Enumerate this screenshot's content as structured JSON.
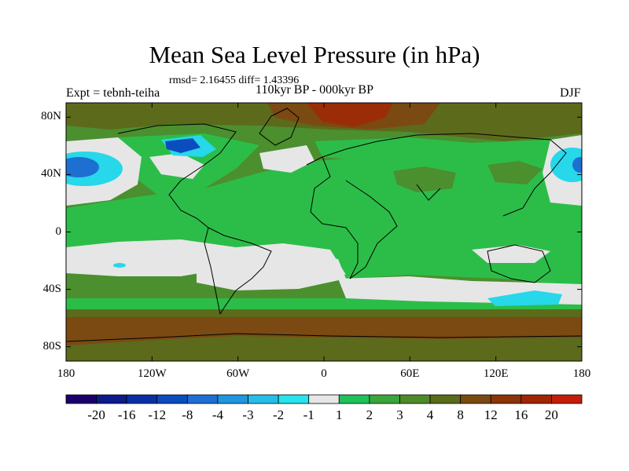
{
  "title": "Mean Sea Level Pressure (in hPa)",
  "stats_line": "rmsd= 2.16455 diff= 1.43396",
  "experiment": "Expt = tebnh-teiha",
  "period": "110kyr BP - 000kyr BP",
  "season": "DJF",
  "map": {
    "lat_ticks": [
      {
        "label": "80N",
        "lat": 80
      },
      {
        "label": "40N",
        "lat": 40
      },
      {
        "label": "0",
        "lat": 0
      },
      {
        "label": "40S",
        "lat": -40
      },
      {
        "label": "80S",
        "lat": -80
      }
    ],
    "lon_ticks": [
      {
        "label": "180",
        "lon": -180
      },
      {
        "label": "120W",
        "lon": -120
      },
      {
        "label": "60W",
        "lon": -60
      },
      {
        "label": "0",
        "lon": 0
      },
      {
        "label": "60E",
        "lon": 60
      },
      {
        "label": "120E",
        "lon": 120
      },
      {
        "label": "180",
        "lon": 180
      }
    ]
  },
  "colorbar": {
    "colors": [
      "#1a006b",
      "#0d1a8c",
      "#0a2fa5",
      "#0b4cbf",
      "#1e6fd2",
      "#1f96df",
      "#26bde8",
      "#27e3ec",
      "#e6e6e6",
      "#1fc25a",
      "#3aa53a",
      "#4f8a2a",
      "#5a6b1b",
      "#7a4a10",
      "#8c3308",
      "#a02505",
      "#c51c0c"
    ],
    "labels": [
      "-20",
      "-16",
      "-12",
      "-8",
      "-4",
      "-3",
      "-2",
      "-1",
      "1",
      "2",
      "3",
      "4",
      "8",
      "12",
      "16",
      "20"
    ]
  },
  "fill_colors": {
    "land_green": "#2cbd49",
    "mid_green": "#4b8f2e",
    "olive": "#5c6a1c",
    "brown": "#7a4a12",
    "red_brown": "#9a2d08",
    "grey": "#e6e6e6",
    "cyan": "#27d7ea",
    "blue": "#1e6fd2",
    "dark_blue": "#0b4cbf"
  }
}
